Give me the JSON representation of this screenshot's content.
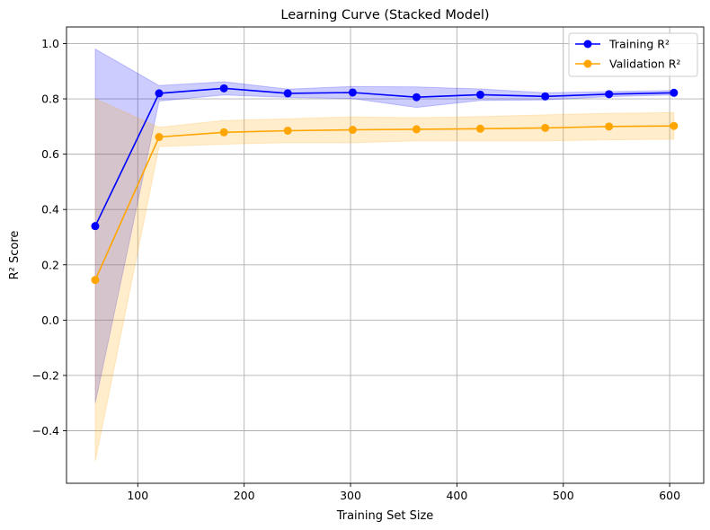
{
  "chart_data": {
    "type": "line",
    "title": "Learning Curve (Stacked Model)",
    "xlabel": "Training Set Size",
    "ylabel": "R² Score",
    "xlim": [
      33,
      632
    ],
    "ylim": [
      -0.59,
      1.06
    ],
    "xticks": [
      100,
      200,
      300,
      400,
      500,
      600
    ],
    "yticks": [
      -0.4,
      -0.2,
      0.0,
      0.2,
      0.4,
      0.6,
      0.8,
      1.0
    ],
    "xtick_labels": [
      "100",
      "200",
      "300",
      "400",
      "500",
      "600"
    ],
    "ytick_labels": [
      "−0.4",
      "−0.2",
      "0.0",
      "0.2",
      "0.4",
      "0.6",
      "0.8",
      "1.0"
    ],
    "grid": true,
    "legend_position": "top-right",
    "x": [
      60,
      120,
      181,
      241,
      302,
      362,
      422,
      483,
      543,
      604
    ],
    "series": [
      {
        "name": "Training R²",
        "color": "#0000ff",
        "band_color": "#0000ff",
        "values": [
          0.34,
          0.82,
          0.838,
          0.82,
          0.823,
          0.806,
          0.815,
          0.809,
          0.817,
          0.822
        ],
        "upper": [
          0.98,
          0.848,
          0.862,
          0.835,
          0.845,
          0.843,
          0.836,
          0.822,
          0.826,
          0.83
        ],
        "lower": [
          -0.3,
          0.792,
          0.814,
          0.805,
          0.801,
          0.769,
          0.794,
          0.796,
          0.808,
          0.814
        ]
      },
      {
        "name": "Validation R²",
        "color": "#ffa500",
        "band_color": "#ffa500",
        "values": [
          0.145,
          0.662,
          0.679,
          0.685,
          0.688,
          0.69,
          0.692,
          0.695,
          0.7,
          0.702
        ],
        "upper": [
          0.8,
          0.697,
          0.722,
          0.728,
          0.735,
          0.732,
          0.736,
          0.742,
          0.748,
          0.75
        ],
        "lower": [
          -0.51,
          0.627,
          0.636,
          0.642,
          0.641,
          0.648,
          0.648,
          0.648,
          0.652,
          0.654
        ]
      }
    ]
  }
}
